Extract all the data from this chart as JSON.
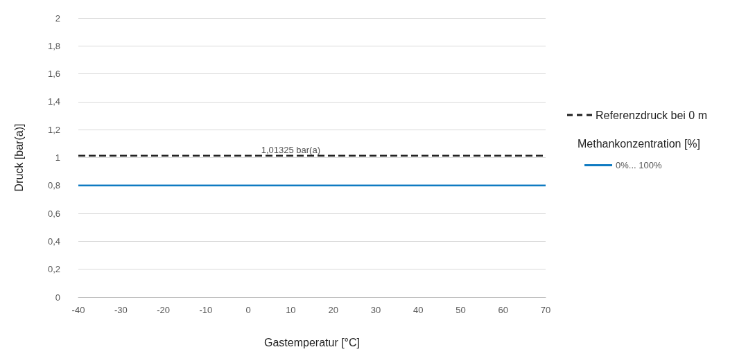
{
  "chart_data": {
    "type": "line",
    "xlabel": "Gastemperatur [°C]",
    "ylabel": "Druck [bar(a)]",
    "legend_title": "Methankonzentration [%]",
    "series": [
      {
        "name": "Referenzdruck bei 0 m",
        "color": "#1f1f1f",
        "line_style": "dashed",
        "values": [
          1.01325,
          1.01325
        ]
      },
      {
        "name": "0%... 100%",
        "color": "#0f7bc2",
        "line_style": "solid",
        "values": [
          0.8,
          0.8
        ]
      }
    ],
    "x": [
      -40,
      70
    ],
    "annotations": [
      {
        "text": "1,01325 bar(a)",
        "x": 10,
        "y": 1.01325
      }
    ],
    "xlim": [
      -40,
      70
    ],
    "xticks": [
      -40,
      -30,
      -20,
      -10,
      0,
      10,
      20,
      30,
      40,
      50,
      60,
      70
    ],
    "ylim": [
      0,
      2
    ],
    "yticks": [
      0,
      {
        "value": 0.2,
        "label": "0,2"
      },
      {
        "value": 0.4,
        "label": "0,4"
      },
      {
        "value": 0.6,
        "label": "0,6"
      },
      {
        "value": 0.8,
        "label": "0,8"
      },
      1,
      {
        "value": 1.2,
        "label": "1,2"
      },
      {
        "value": 1.4,
        "label": "1,4"
      },
      {
        "value": 1.6,
        "label": "1,6"
      },
      {
        "value": 1.8,
        "label": "1,8"
      },
      2
    ],
    "grid": "y",
    "legend": "right",
    "marker": "none"
  }
}
